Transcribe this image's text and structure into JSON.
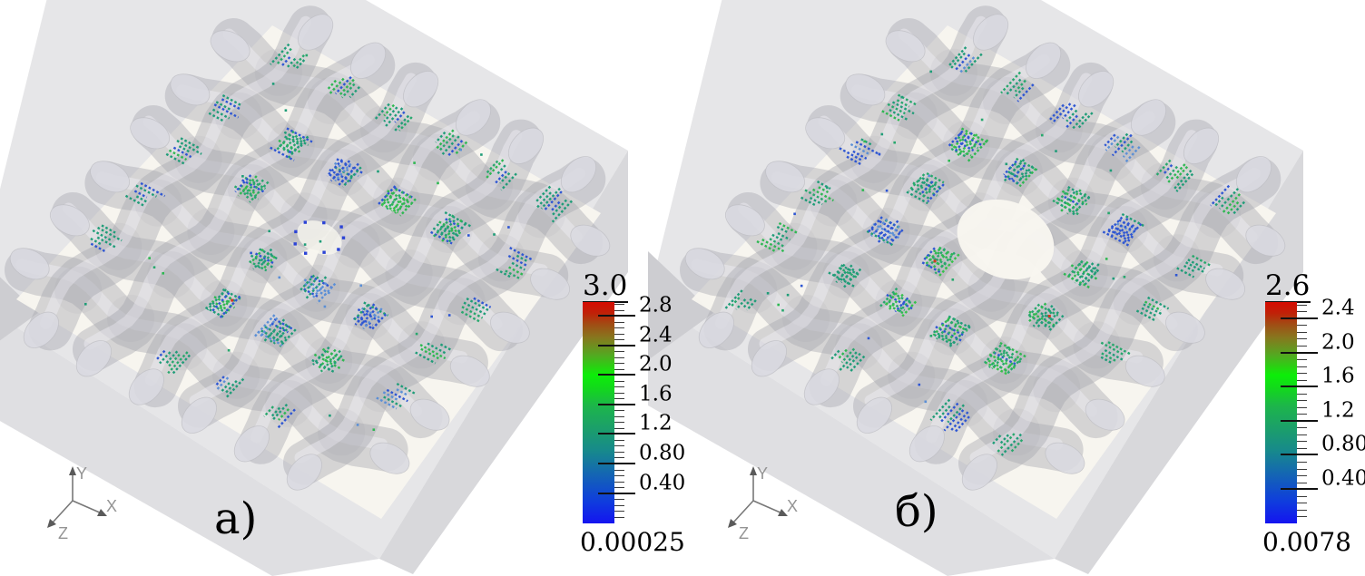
{
  "figure": {
    "title": "",
    "panels": [
      {
        "label": "а)",
        "orientation_axes": {
          "x": "X",
          "y": "Y",
          "z": "Z"
        },
        "colorbar": {
          "max_label": "3.0",
          "min_label": "0.00025",
          "min": 0.00025,
          "max": 3.0,
          "tick_values": [
            0.4,
            0.8,
            1.2,
            1.6,
            2.0,
            2.4,
            2.8
          ],
          "tick_labels": [
            "0.40",
            "0.80",
            "1.2",
            "1.6",
            "2.0",
            "2.4",
            "2.8"
          ],
          "minor_tick_step": 0.08
        }
      },
      {
        "label": "б)",
        "orientation_axes": {
          "x": "X",
          "y": "Y",
          "z": "Z"
        },
        "colorbar": {
          "max_label": "2.6",
          "min_label": "0.0078",
          "min": 0.0078,
          "max": 2.6,
          "tick_values": [
            0.4,
            0.8,
            1.2,
            1.6,
            2.0,
            2.4
          ],
          "tick_labels": [
            "0.40",
            "0.80",
            "1.2",
            "1.6",
            "2.0",
            "2.4"
          ],
          "minor_tick_step": 0.08
        }
      }
    ],
    "colors": {
      "colorbar_gradient_bottom_to_top": [
        "#1414f0 0%",
        "#0f3ddd 10%",
        "#1465b4 22%",
        "#178a8b 33%",
        "#1b9d6d 42%",
        "#1db54b 53%",
        "#12d81c 61%",
        "#0cee08 67%",
        "#53a921 76%",
        "#87771e 84%",
        "#a14c14 90%",
        "#c02108 95%",
        "#d60b01 100%"
      ],
      "glyph_teal": "#1f9d78",
      "glyph_teal2": "#27a86d",
      "glyph_green": "#2eb852",
      "glyph_green2": "#35c24a",
      "glyph_blue": "#2e56d3",
      "glyph_lightblue": "#5b8fd6",
      "glyph_red": "#cf3a22",
      "dot_blue": "#2b43d6",
      "tube_gray": "#a8a8af",
      "tube_highlight": "#edecf1",
      "tube_cap": "#dadae0",
      "plate_gray": "#e6e6e8",
      "side_gray": "#d8d8db",
      "band_gray": "#dfdfe2",
      "wedge_gray": "#cdcdd1",
      "floor_cream": "#f8f6ef",
      "tick_color": "#1a1a1a",
      "label_color": "#000000",
      "axis_arrow_color": "#787878",
      "axis_label_color": "#949494"
    }
  },
  "chart_data": [
    {
      "type": "scatter",
      "panel_label": "а)",
      "description": "3D vector-glyph field (dashed teal/green/blue streamline glyphs) on a semi-transparent 6x6 plain-weave fabric unit cell inside a gray slab; sparse blue dots at the cell center",
      "orientation_axes": [
        "X",
        "Y",
        "Z"
      ],
      "colorbar": {
        "orientation": "vertical",
        "min": 0.00025,
        "max": 3.0,
        "max_label": "3.0",
        "min_label": "0.00025",
        "tick_values": [
          0.4,
          0.8,
          1.2,
          1.6,
          2.0,
          2.4,
          2.8
        ],
        "tick_labels": [
          "0.40",
          "0.80",
          "1.2",
          "1.6",
          "2.0",
          "2.4",
          "2.8"
        ],
        "colormap": "blue-green-red rainbow"
      }
    },
    {
      "type": "scatter",
      "panel_label": "б)",
      "description": "Same woven unit-cell glyph field but with an open hole (missing crossover) at the center of the weave",
      "orientation_axes": [
        "X",
        "Y",
        "Z"
      ],
      "colorbar": {
        "orientation": "vertical",
        "min": 0.0078,
        "max": 2.6,
        "max_label": "2.6",
        "min_label": "0.0078",
        "tick_values": [
          0.4,
          0.8,
          1.2,
          1.6,
          2.0,
          2.4
        ],
        "tick_labels": [
          "0.40",
          "0.80",
          "1.2",
          "1.6",
          "2.0",
          "2.4"
        ],
        "colormap": "blue-green-red rainbow"
      }
    }
  ]
}
